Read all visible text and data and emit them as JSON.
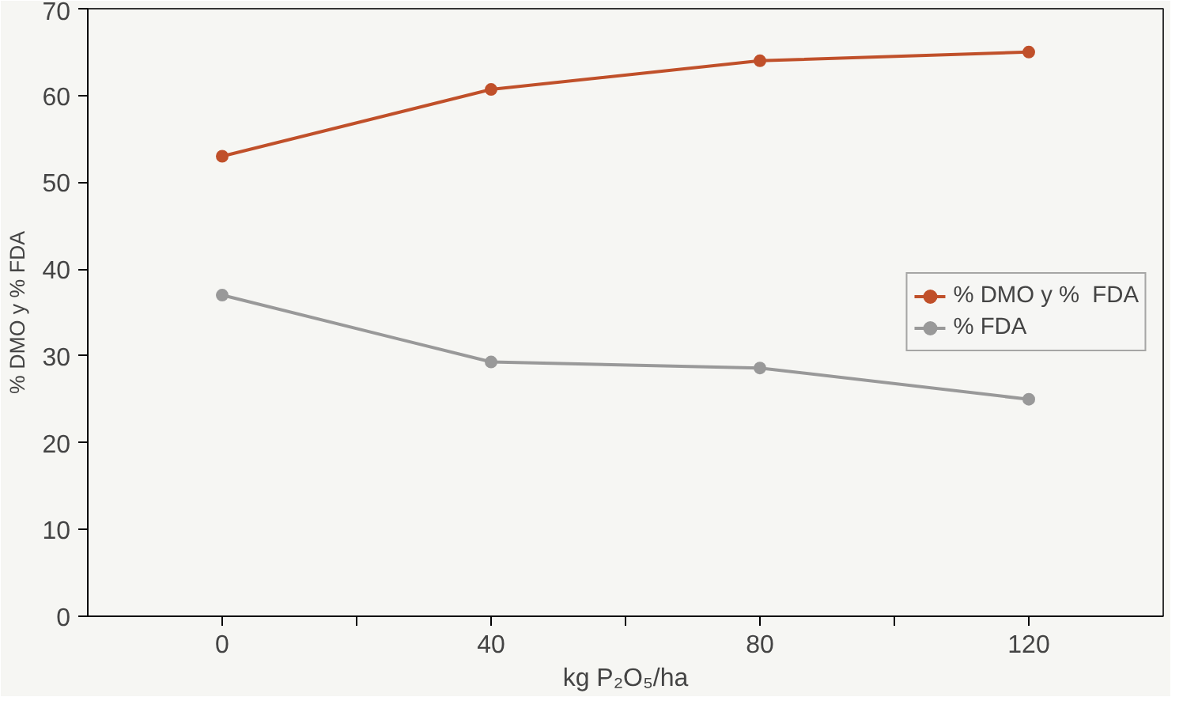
{
  "chart_data": {
    "type": "line",
    "xlabel": "kg P₂O₅/ha",
    "ylabel": "% DMO y % FDA",
    "x": [
      0,
      40,
      80,
      120
    ],
    "series": [
      {
        "name": "% DMO y %  FDA",
        "color": "#c0502a",
        "values": [
          53,
          60.7,
          64,
          65
        ]
      },
      {
        "name": "% FDA",
        "color": "#999999",
        "values": [
          37,
          29.3,
          28.6,
          25
        ]
      }
    ],
    "xlim": [
      -20,
      140
    ],
    "xticks": [
      0,
      {
        "value": 20,
        "label": null
      },
      40,
      {
        "value": 60,
        "label": null
      },
      80,
      {
        "value": 100,
        "label": null
      },
      120
    ],
    "ylim": [
      0,
      70
    ],
    "yticks": [
      0,
      10,
      20,
      30,
      40,
      50,
      60,
      70
    ],
    "grid": false,
    "legend": "right",
    "marker": "circle",
    "line_style": "solid"
  }
}
